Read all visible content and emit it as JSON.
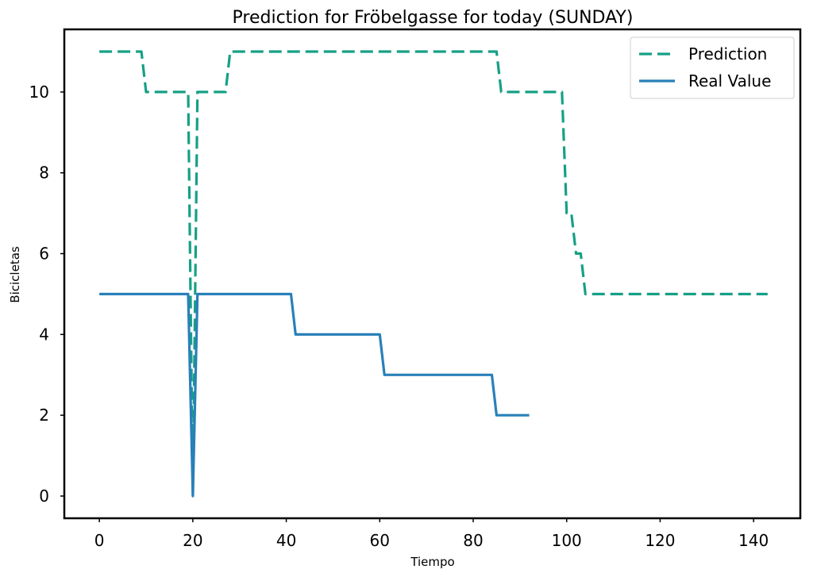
{
  "chart_data": {
    "type": "line",
    "title": "Prediction for Fröbelgasse for today (SUNDAY)",
    "xlabel": "Tiempo",
    "ylabel": "Bicicletas",
    "xlim": [
      -7.5,
      150
    ],
    "ylim": [
      -0.55,
      11.55
    ],
    "xticks": [
      0,
      20,
      40,
      60,
      80,
      100,
      120,
      140
    ],
    "yticks": [
      0,
      2,
      4,
      6,
      8,
      10
    ],
    "grid": false,
    "legend_position": "top-right",
    "series": [
      {
        "name": "Prediction",
        "color": "#16a085",
        "style": "dashed",
        "x": [
          0,
          9,
          10,
          19,
          20,
          21,
          27,
          28,
          85,
          86,
          99,
          100,
          101,
          102,
          103,
          104,
          143
        ],
        "y": [
          11,
          11,
          10,
          10,
          0,
          10,
          10,
          11,
          11,
          10,
          10,
          7,
          7,
          6,
          6,
          5,
          5
        ]
      },
      {
        "name": "Real Value",
        "color": "#2980b9",
        "style": "solid",
        "x": [
          0,
          19,
          20,
          21,
          41,
          42,
          60,
          61,
          84,
          85,
          92
        ],
        "y": [
          5,
          5,
          0,
          5,
          5,
          4,
          4,
          3,
          3,
          2,
          2
        ]
      }
    ]
  }
}
